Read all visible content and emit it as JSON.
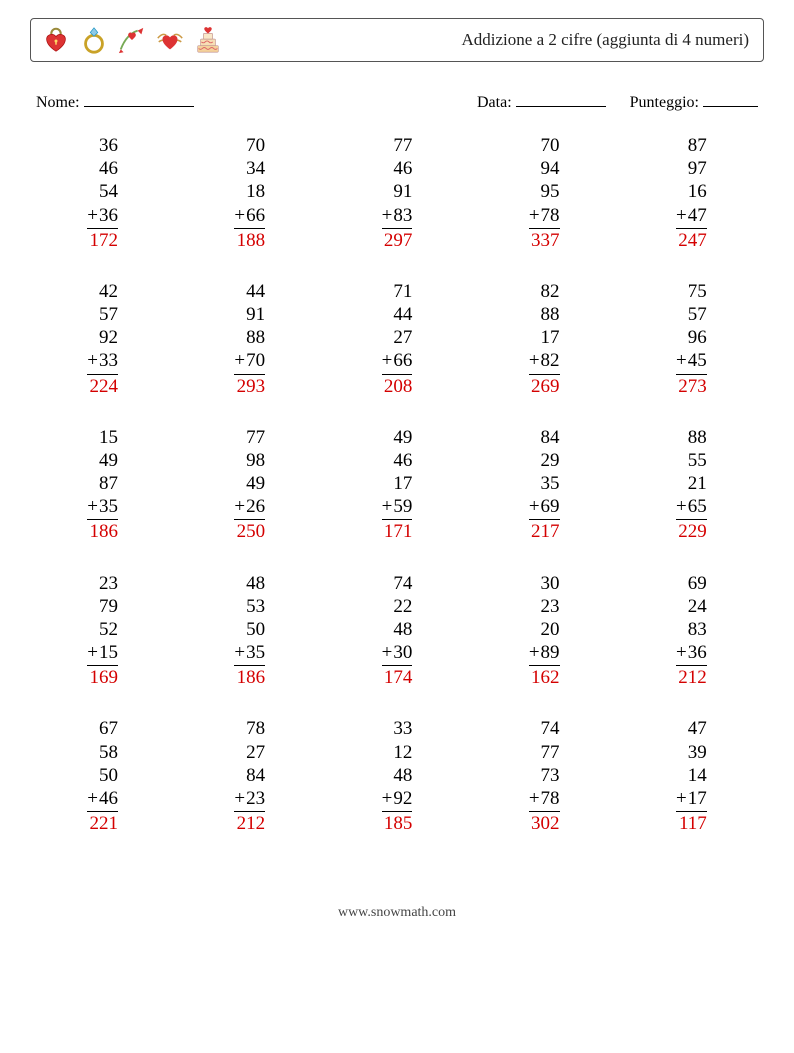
{
  "header": {
    "title": "Addizione a 2 cifre (aggiunta di 4 numeri)",
    "icons": [
      "heart-lock-icon",
      "ring-icon",
      "cupid-arrow-icon",
      "winged-heart-icon",
      "wedding-cake-icon"
    ]
  },
  "meta": {
    "name_label": "Nome:",
    "date_label": "Data:",
    "score_label": "Punteggio:",
    "name_underline_w": 110,
    "date_underline_w": 90,
    "score_underline_w": 55
  },
  "colors": {
    "answer": "#d40000",
    "text": "#000000",
    "border": "#555555"
  },
  "typography": {
    "number_fontsize": 19,
    "title_fontsize": 17,
    "meta_fontsize": 16
  },
  "layout": {
    "cols": 5,
    "rows": 5
  },
  "problems": [
    {
      "addends": [
        36,
        46,
        54,
        36
      ],
      "answer": 172
    },
    {
      "addends": [
        70,
        34,
        18,
        66
      ],
      "answer": 188
    },
    {
      "addends": [
        77,
        46,
        91,
        83
      ],
      "answer": 297
    },
    {
      "addends": [
        70,
        94,
        95,
        78
      ],
      "answer": 337
    },
    {
      "addends": [
        87,
        97,
        16,
        47
      ],
      "answer": 247
    },
    {
      "addends": [
        42,
        57,
        92,
        33
      ],
      "answer": 224
    },
    {
      "addends": [
        44,
        91,
        88,
        70
      ],
      "answer": 293
    },
    {
      "addends": [
        71,
        44,
        27,
        66
      ],
      "answer": 208
    },
    {
      "addends": [
        82,
        88,
        17,
        82
      ],
      "answer": 269
    },
    {
      "addends": [
        75,
        57,
        96,
        45
      ],
      "answer": 273
    },
    {
      "addends": [
        15,
        49,
        87,
        35
      ],
      "answer": 186
    },
    {
      "addends": [
        77,
        98,
        49,
        26
      ],
      "answer": 250
    },
    {
      "addends": [
        49,
        46,
        17,
        59
      ],
      "answer": 171
    },
    {
      "addends": [
        84,
        29,
        35,
        69
      ],
      "answer": 217
    },
    {
      "addends": [
        88,
        55,
        21,
        65
      ],
      "answer": 229
    },
    {
      "addends": [
        23,
        79,
        52,
        15
      ],
      "answer": 169
    },
    {
      "addends": [
        48,
        53,
        50,
        35
      ],
      "answer": 186
    },
    {
      "addends": [
        74,
        22,
        48,
        30
      ],
      "answer": 174
    },
    {
      "addends": [
        30,
        23,
        20,
        89
      ],
      "answer": 162
    },
    {
      "addends": [
        69,
        24,
        83,
        36
      ],
      "answer": 212
    },
    {
      "addends": [
        67,
        58,
        50,
        46
      ],
      "answer": 221
    },
    {
      "addends": [
        78,
        27,
        84,
        23
      ],
      "answer": 212
    },
    {
      "addends": [
        33,
        12,
        48,
        92
      ],
      "answer": 185
    },
    {
      "addends": [
        74,
        77,
        73,
        78
      ],
      "answer": 302
    },
    {
      "addends": [
        47,
        39,
        14,
        17
      ],
      "answer": 117
    }
  ],
  "footer": {
    "text": "www.snowmath.com"
  }
}
